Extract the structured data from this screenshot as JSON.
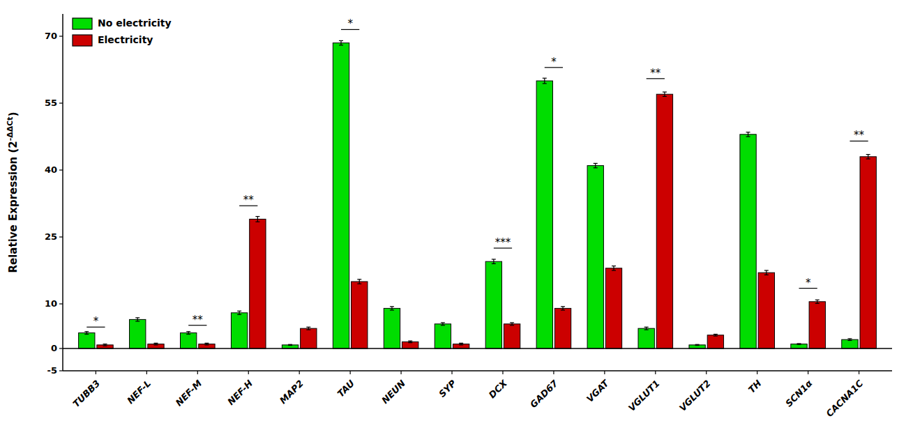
{
  "chart_data": {
    "type": "bar",
    "y_label": "Relative Expression (2-ΔΔCt)",
    "y_label_superscript": "-ΔΔCt",
    "categories": [
      "TUBB3",
      "NEF-L",
      "NEF-M",
      "NEF-H",
      "MAP2",
      "TAU",
      "NEUN",
      "SYP",
      "DCX",
      "GAD67",
      "VGAT",
      "VGLUT1",
      "VGLUT2",
      "TH",
      "SCN1α",
      "CACNA1C"
    ],
    "series": [
      {
        "name": "No electricity",
        "color": "#00dd00",
        "values": [
          3.5,
          6.5,
          3.5,
          8.0,
          0.8,
          68.5,
          9.0,
          5.5,
          19.5,
          60.0,
          41.0,
          4.5,
          0.8,
          48.0,
          1.0,
          2.0
        ],
        "errors": [
          0.3,
          0.4,
          0.3,
          0.4,
          0.1,
          0.5,
          0.4,
          0.3,
          0.5,
          0.6,
          0.5,
          0.3,
          0.1,
          0.5,
          0.1,
          0.2
        ]
      },
      {
        "name": "Electricity",
        "color": "#cc0000",
        "values": [
          0.8,
          1.0,
          1.0,
          29.0,
          4.5,
          15.0,
          1.5,
          1.0,
          5.5,
          9.0,
          18.0,
          57.0,
          3.0,
          17.0,
          10.5,
          43.0
        ],
        "errors": [
          0.2,
          0.2,
          0.2,
          0.6,
          0.3,
          0.5,
          0.2,
          0.2,
          0.3,
          0.4,
          0.5,
          0.5,
          0.2,
          0.5,
          0.4,
          0.5
        ]
      }
    ],
    "annotations": [
      {
        "category": "TUBB3",
        "label": "*",
        "y": 4.8
      },
      {
        "category": "NEF-M",
        "label": "**",
        "y": 5.2
      },
      {
        "category": "NEF-H",
        "label": "**",
        "y": 32.0
      },
      {
        "category": "TAU",
        "label": "*",
        "y": 71.5
      },
      {
        "category": "DCX",
        "label": "***",
        "y": 22.5
      },
      {
        "category": "GAD67",
        "label": "*",
        "y": 63.0
      },
      {
        "category": "VGLUT1",
        "label": "**",
        "y": 60.5
      },
      {
        "category": "SCN1α",
        "label": "*",
        "y": 13.5
      },
      {
        "category": "CACNA1C",
        "label": "**",
        "y": 46.5
      }
    ],
    "ylim": [
      -5,
      75
    ],
    "yticks": [
      -5,
      0,
      10,
      25,
      40,
      55,
      70
    ],
    "legend": "upper-left",
    "grid": false
  }
}
